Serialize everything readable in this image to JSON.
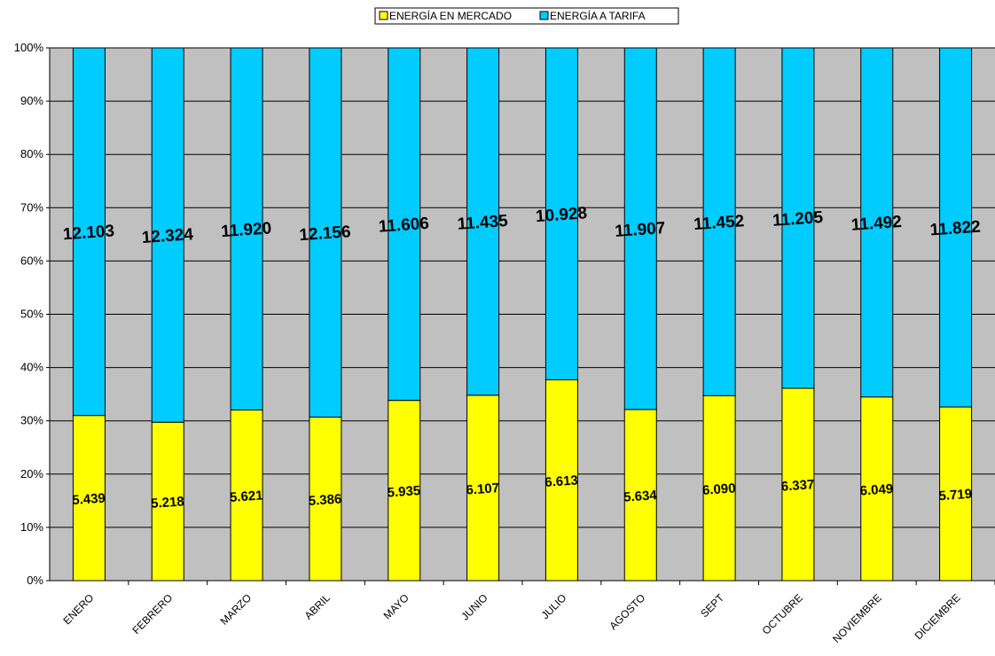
{
  "chart_data": {
    "type": "bar",
    "stacked": "percent",
    "categories": [
      "ENERO",
      "FEBRERO",
      "MARZO",
      "ABRIL",
      "MAYO",
      "JUNIO",
      "JULIO",
      "AGOSTO",
      "SEPT",
      "OCTUBRE",
      "NOVIEMBRE",
      "DICIEMBRE"
    ],
    "series": [
      {
        "name": "ENERGÍA EN MERCADO",
        "color": "#FFFF00",
        "values": [
          5439,
          5218,
          5621,
          5386,
          5935,
          6107,
          6613,
          5634,
          6090,
          6337,
          6049,
          5719
        ],
        "labels": [
          "5.439",
          "5.218",
          "5.621",
          "5.386",
          "5.935",
          "6.107",
          "6.613",
          "5.634",
          "6.090",
          "6.337",
          "6.049",
          "5.719"
        ]
      },
      {
        "name": "ENERGÍA A TARIFA",
        "color": "#00CCFF",
        "values": [
          12103,
          12324,
          11920,
          12156,
          11606,
          11435,
          10928,
          11907,
          11452,
          11205,
          11492,
          11822
        ],
        "labels": [
          "12.103",
          "12.324",
          "11.920",
          "12.156",
          "11.606",
          "11.435",
          "10.928",
          "11.907",
          "11.452",
          "11.205",
          "11.492",
          "11.822"
        ]
      }
    ],
    "ylim": [
      0,
      100
    ],
    "y_ticks": [
      "0%",
      "10%",
      "20%",
      "30%",
      "40%",
      "50%",
      "60%",
      "70%",
      "80%",
      "90%",
      "100%"
    ],
    "plot_background": "#C0C0C0",
    "grid": true,
    "legend_position": "top-center"
  }
}
